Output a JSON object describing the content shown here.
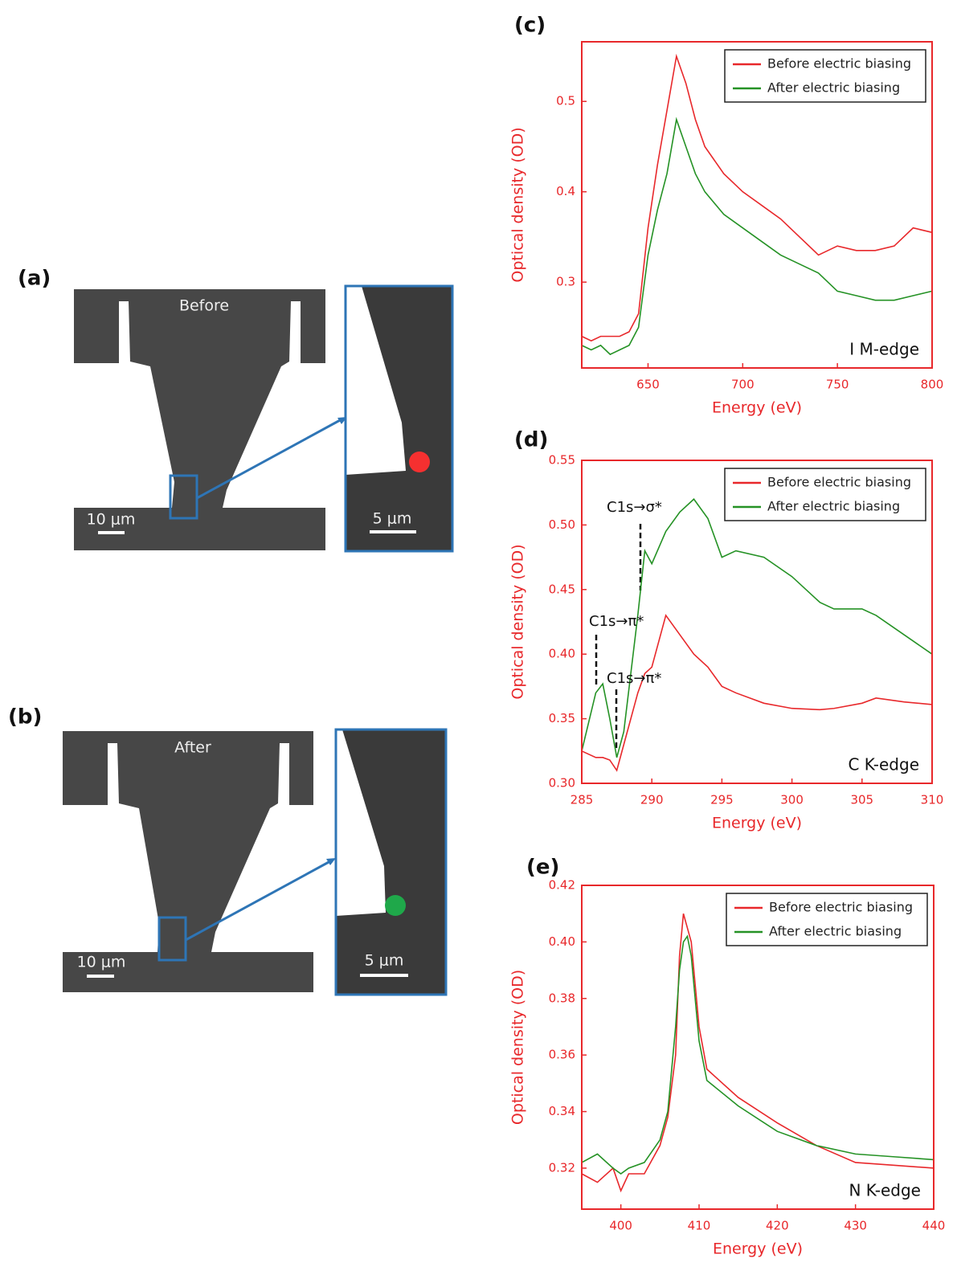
{
  "panels": [
    {
      "label": "(a)",
      "title": "Before",
      "minus": "-",
      "plus": "+",
      "scale_bar": "10 μm",
      "inset_scale_bar": "5 μm"
    },
    {
      "label": "(b)",
      "title": "After",
      "minus": "-",
      "plus": "+",
      "scale_bar": "10 μm",
      "inset_scale_bar": "5 μm"
    }
  ],
  "chart_data": [
    {
      "type": "line",
      "label": "(c)",
      "x_label": "Energy (eV)",
      "y_label": "Optical density (OD)",
      "edge_label": "I M-edge",
      "x": [
        615,
        620,
        625,
        630,
        635,
        640,
        645,
        650,
        655,
        660,
        665,
        670,
        675,
        680,
        690,
        700,
        710,
        720,
        730,
        740,
        745,
        750,
        760,
        770,
        780,
        790,
        800
      ],
      "series": [
        {
          "name": "Before electric biasing",
          "color": "#e8282b",
          "values": [
            0.24,
            0.235,
            0.24,
            0.24,
            0.24,
            0.245,
            0.265,
            0.36,
            0.43,
            0.49,
            0.55,
            0.52,
            0.48,
            0.45,
            0.42,
            0.4,
            0.385,
            0.37,
            0.35,
            0.33,
            0.335,
            0.34,
            0.335,
            0.335,
            0.34,
            0.36,
            0.355
          ]
        },
        {
          "name": "After electric biasing",
          "color": "#259225",
          "values": [
            0.23,
            0.225,
            0.23,
            0.22,
            0.225,
            0.23,
            0.25,
            0.33,
            0.38,
            0.42,
            0.48,
            0.45,
            0.42,
            0.4,
            0.375,
            0.36,
            0.345,
            0.33,
            0.32,
            0.31,
            0.3,
            0.29,
            0.285,
            0.28,
            0.28,
            0.285,
            0.29
          ]
        }
      ],
      "xlim": [
        615,
        800
      ],
      "ylim": [
        0.205,
        0.566
      ],
      "xticks": [
        650,
        700,
        750,
        800
      ],
      "yticks": [
        0.3,
        0.4,
        0.5
      ],
      "legend": "upper right",
      "frame_color": "#e8282b"
    },
    {
      "type": "line",
      "label": "(d)",
      "x_label": "Energy (eV)",
      "y_label": "Optical density (OD)",
      "edge_label": "C K-edge",
      "peak_labels": [
        "C1s→σ*",
        "C1s→π*",
        "C1s→π*"
      ],
      "x": [
        285,
        286,
        286.5,
        287,
        287.5,
        288,
        289,
        289.5,
        290,
        291,
        292,
        293,
        294,
        295,
        296,
        298,
        300,
        302,
        303,
        305,
        306,
        308,
        310
      ],
      "series": [
        {
          "name": "Before electric biasing",
          "color": "#e8282b",
          "values": [
            0.325,
            0.32,
            0.32,
            0.318,
            0.31,
            0.33,
            0.37,
            0.385,
            0.39,
            0.43,
            0.415,
            0.4,
            0.39,
            0.375,
            0.37,
            0.362,
            0.358,
            0.357,
            0.358,
            0.362,
            0.366,
            0.363,
            0.361
          ]
        },
        {
          "name": "After electric biasing",
          "color": "#259225",
          "values": [
            0.325,
            0.37,
            0.377,
            0.35,
            0.32,
            0.34,
            0.43,
            0.48,
            0.47,
            0.495,
            0.51,
            0.52,
            0.505,
            0.475,
            0.48,
            0.475,
            0.46,
            0.44,
            0.435,
            0.435,
            0.43,
            0.415,
            0.4
          ]
        }
      ],
      "xlim": [
        285,
        310
      ],
      "ylim": [
        0.3,
        0.55
      ],
      "xticks": [
        285,
        290,
        295,
        300,
        305,
        310
      ],
      "yticks": [
        {
          "value": 0.3,
          "label": "0.30"
        },
        0.35,
        {
          "value": 0.4,
          "label": "0.40"
        },
        0.45,
        {
          "value": 0.5,
          "label": "0.50"
        },
        0.55
      ],
      "legend": "upper right",
      "frame_color": "#e8282b"
    },
    {
      "type": "line",
      "label": "(e)",
      "x_label": "Energy (eV)",
      "y_label": "Optical density (OD)",
      "edge_label": "N K-edge",
      "x": [
        395,
        397,
        399,
        400,
        401,
        403,
        405,
        406,
        407,
        407.5,
        408,
        408.5,
        409,
        410,
        411,
        415,
        420,
        425,
        430,
        435,
        440
      ],
      "series": [
        {
          "name": "Before electric biasing",
          "color": "#e8282b",
          "values": [
            0.318,
            0.315,
            0.32,
            0.312,
            0.318,
            0.318,
            0.328,
            0.338,
            0.36,
            0.395,
            0.41,
            0.405,
            0.4,
            0.37,
            0.355,
            0.345,
            0.336,
            0.328,
            0.322,
            0.321,
            0.32
          ]
        },
        {
          "name": "After electric biasing",
          "color": "#259225",
          "values": [
            0.322,
            0.325,
            0.32,
            0.318,
            0.32,
            0.322,
            0.33,
            0.34,
            0.37,
            0.39,
            0.4,
            0.402,
            0.395,
            0.365,
            0.351,
            0.342,
            0.333,
            0.328,
            0.325,
            0.324,
            0.323
          ]
        }
      ],
      "xlim": [
        395,
        440
      ],
      "ylim": [
        0.3055,
        0.42
      ],
      "xticks": [
        400,
        410,
        420,
        430,
        440
      ],
      "yticks": [
        0.32,
        0.34,
        0.36,
        0.38,
        {
          "value": 0.4,
          "label": "0.40"
        },
        0.42
      ],
      "legend": "upper right",
      "frame_color": "#e8282b"
    }
  ]
}
